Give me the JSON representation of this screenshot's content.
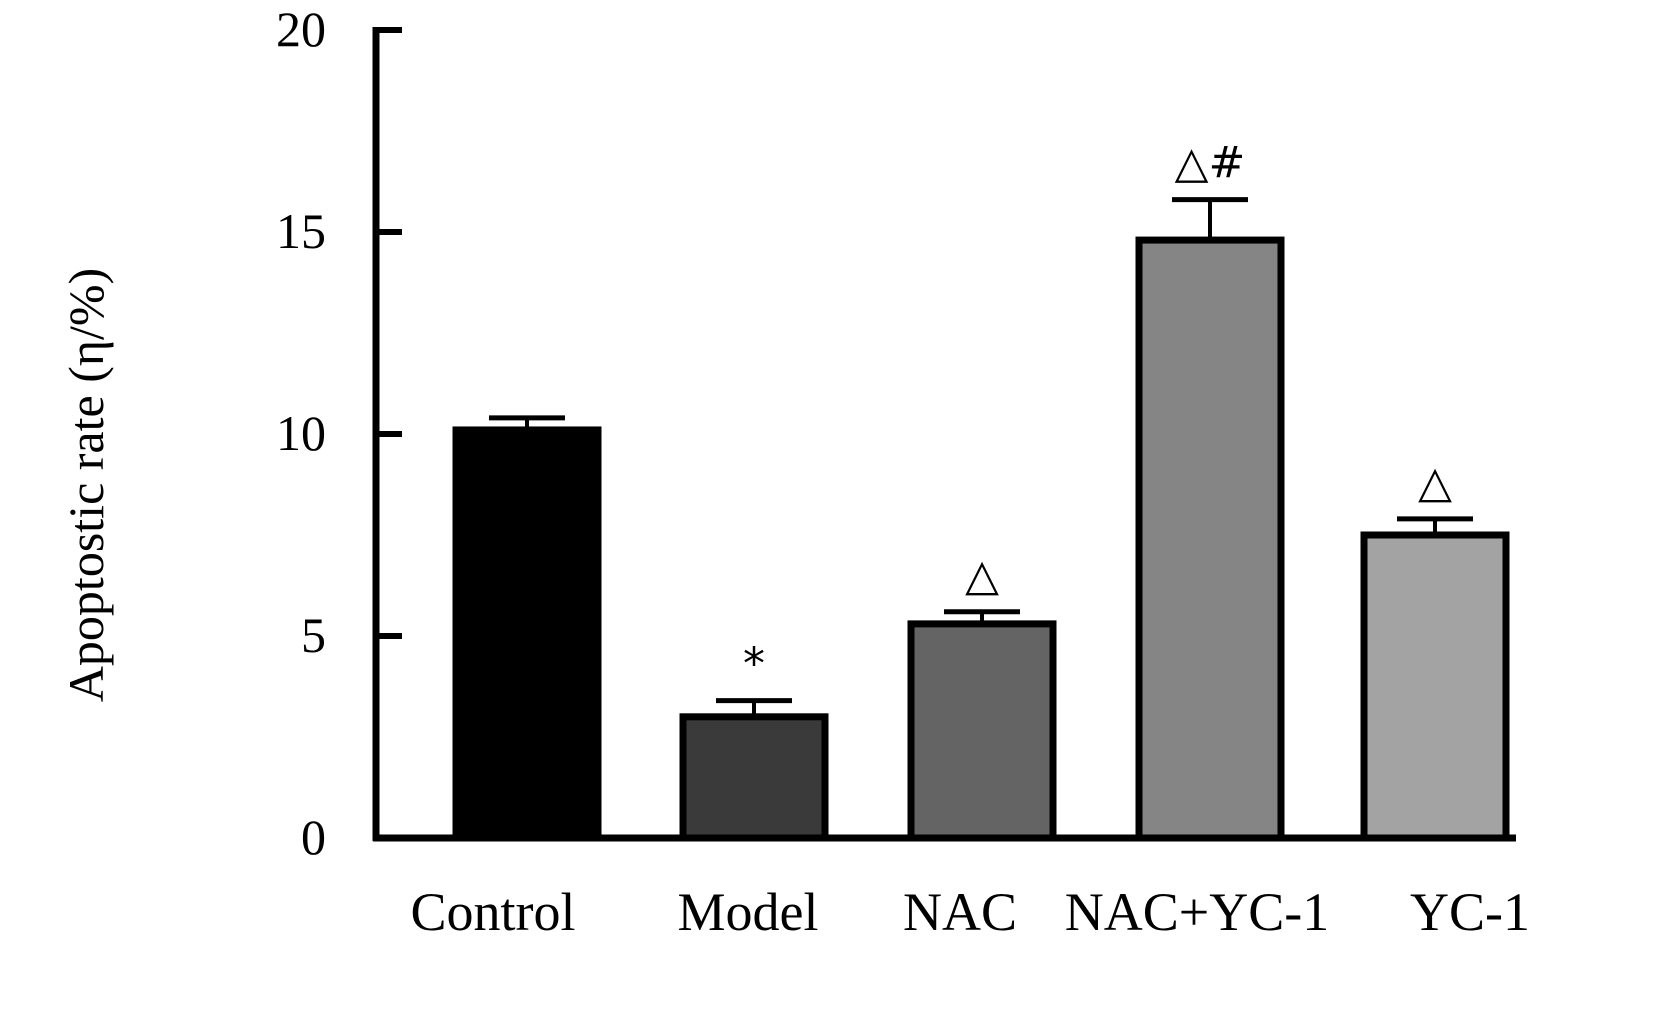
{
  "chart_data": {
    "type": "bar",
    "title": "",
    "xlabel": "",
    "ylabel": "Apoptostic rate (η/%)",
    "ylim": [
      0,
      20
    ],
    "yticks": [
      0,
      5,
      10,
      15,
      20
    ],
    "grid": false,
    "categories": [
      "Control",
      "Model",
      "NAC",
      "NAC+YC-1",
      "YC-1"
    ],
    "values": [
      10.1,
      3.0,
      5.3,
      14.8,
      7.5
    ],
    "errors": [
      0.3,
      0.4,
      0.3,
      1.0,
      0.4
    ],
    "annotations": [
      "",
      "*",
      "△",
      "△#",
      "△"
    ],
    "colors": [
      "#000000",
      "#3a3a3a",
      "#646464",
      "#858585",
      "#a3a3a3"
    ]
  }
}
